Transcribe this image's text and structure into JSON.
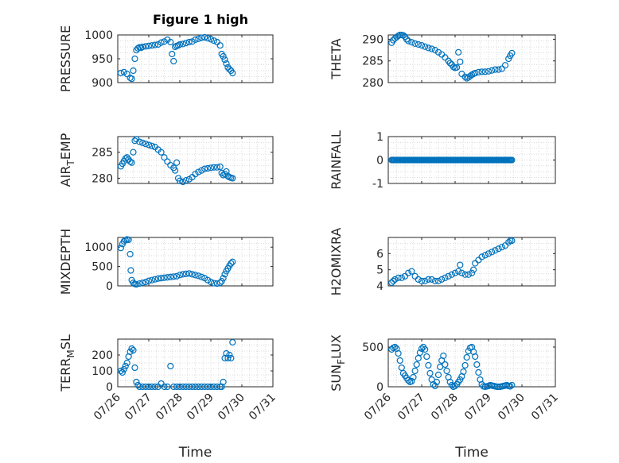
{
  "figure": {
    "title": "Figure 1 high"
  },
  "chart_data": [
    {
      "id": "pressure",
      "type": "scatter",
      "ylabel": "PRESSURE",
      "xlabel": "",
      "title": "Figure 1 high",
      "xlim": [
        "07/26",
        "07/31"
      ],
      "ylim": [
        900,
        1000
      ],
      "yticks": [
        900,
        950,
        1000
      ],
      "grid": true,
      "marker": "open-circle",
      "color": "#0072BD",
      "x": [
        0.1,
        0.2,
        0.3,
        0.4,
        0.45,
        0.5,
        0.55,
        0.6,
        0.65,
        0.7,
        0.75,
        0.8,
        0.9,
        1.0,
        1.1,
        1.2,
        1.3,
        1.4,
        1.5,
        1.6,
        1.7,
        1.75,
        1.8,
        1.85,
        1.9,
        1.95,
        2.0,
        2.1,
        2.2,
        2.3,
        2.4,
        2.5,
        2.6,
        2.7,
        2.8,
        2.9,
        3.0,
        3.1,
        3.2,
        3.3,
        3.35,
        3.4,
        3.45,
        3.5,
        3.55,
        3.6,
        3.65,
        3.7
      ],
      "y": [
        920,
        922,
        918,
        910,
        908,
        925,
        950,
        968,
        972,
        974,
        973,
        975,
        976,
        977,
        978,
        979,
        980,
        984,
        986,
        990,
        985,
        960,
        945,
        975,
        977,
        978,
        980,
        981,
        983,
        985,
        986,
        990,
        992,
        994,
        995,
        993,
        991,
        988,
        985,
        978,
        960,
        955,
        948,
        940,
        932,
        928,
        925,
        920
      ]
    },
    {
      "id": "theta",
      "type": "scatter",
      "ylabel": "THETA",
      "xlabel": "",
      "xlim": [
        "07/26",
        "07/31"
      ],
      "ylim": [
        280,
        291
      ],
      "yticks": [
        280,
        285,
        290
      ],
      "grid": true,
      "marker": "open-circle",
      "color": "#0072BD",
      "x": [
        0.1,
        0.15,
        0.2,
        0.25,
        0.3,
        0.35,
        0.4,
        0.45,
        0.5,
        0.55,
        0.6,
        0.7,
        0.8,
        0.9,
        1.0,
        1.1,
        1.2,
        1.3,
        1.4,
        1.5,
        1.6,
        1.7,
        1.8,
        1.85,
        1.9,
        1.95,
        2.0,
        2.05,
        2.1,
        2.15,
        2.2,
        2.3,
        2.35,
        2.4,
        2.45,
        2.5,
        2.55,
        2.6,
        2.7,
        2.8,
        2.9,
        3.0,
        3.1,
        3.2,
        3.3,
        3.4,
        3.5,
        3.6,
        3.65,
        3.7
      ],
      "y": [
        289.2,
        289.8,
        290.2,
        290.5,
        290.8,
        291.0,
        291.0,
        290.9,
        290.6,
        290.0,
        289.6,
        289.3,
        289.0,
        288.8,
        288.6,
        288.3,
        288.0,
        287.8,
        287.5,
        287.0,
        286.5,
        285.8,
        285.0,
        284.5,
        284.2,
        283.6,
        283.4,
        283.5,
        287.0,
        284.8,
        282.0,
        281.3,
        281.0,
        281.2,
        281.5,
        281.8,
        282.0,
        282.2,
        282.4,
        282.5,
        282.5,
        282.6,
        282.8,
        283.0,
        283.0,
        283.2,
        284.0,
        285.5,
        286.2,
        286.8
      ]
    },
    {
      "id": "air_temp",
      "type": "scatter",
      "ylabel": "AIR_TEMP",
      "xlabel": "",
      "xlim": [
        "07/26",
        "07/31"
      ],
      "ylim": [
        279,
        288
      ],
      "yticks": [
        280,
        285
      ],
      "grid": true,
      "marker": "open-circle",
      "color": "#0072BD",
      "x": [
        0.1,
        0.15,
        0.2,
        0.25,
        0.3,
        0.35,
        0.4,
        0.45,
        0.5,
        0.55,
        0.6,
        0.7,
        0.8,
        0.9,
        1.0,
        1.1,
        1.2,
        1.3,
        1.4,
        1.5,
        1.6,
        1.7,
        1.8,
        1.85,
        1.9,
        1.95,
        2.0,
        2.1,
        2.2,
        2.3,
        2.4,
        2.5,
        2.6,
        2.7,
        2.8,
        2.9,
        3.0,
        3.1,
        3.2,
        3.3,
        3.35,
        3.4,
        3.45,
        3.5,
        3.55,
        3.6,
        3.65,
        3.7
      ],
      "y": [
        282.3,
        282.8,
        283.3,
        283.8,
        284.0,
        283.6,
        283.2,
        283.0,
        285.0,
        287.2,
        287.5,
        287.0,
        286.8,
        286.6,
        286.4,
        286.2,
        286.0,
        285.5,
        285.0,
        284.0,
        283.2,
        282.5,
        282.0,
        281.5,
        283.0,
        280.0,
        279.5,
        279.3,
        279.6,
        279.8,
        280.2,
        280.8,
        281.2,
        281.5,
        281.8,
        281.9,
        282.0,
        282.1,
        282.1,
        282.2,
        281.0,
        280.6,
        280.8,
        281.3,
        280.4,
        280.2,
        280.1,
        280.0
      ]
    },
    {
      "id": "rainfall",
      "type": "scatter",
      "ylabel": "RAINFALL",
      "xlabel": "",
      "xlim": [
        "07/26",
        "07/31"
      ],
      "ylim": [
        -1,
        1
      ],
      "yticks": [
        -1,
        0,
        1
      ],
      "grid": true,
      "marker": "open-circle",
      "color": "#0072BD",
      "x_range": [
        0.1,
        3.7
      ],
      "y_constant": 0
    },
    {
      "id": "mixdepth",
      "type": "scatter",
      "ylabel": "MIXDEPTH",
      "xlabel": "",
      "xlim": [
        "07/26",
        "07/31"
      ],
      "ylim": [
        0,
        1250
      ],
      "yticks": [
        0,
        500,
        1000
      ],
      "grid": true,
      "marker": "open-circle",
      "color": "#0072BD",
      "x": [
        0.1,
        0.15,
        0.2,
        0.25,
        0.3,
        0.35,
        0.4,
        0.42,
        0.45,
        0.5,
        0.55,
        0.6,
        0.7,
        0.8,
        0.9,
        1.0,
        1.1,
        1.2,
        1.3,
        1.4,
        1.5,
        1.6,
        1.7,
        1.8,
        1.9,
        2.0,
        2.1,
        2.2,
        2.3,
        2.4,
        2.5,
        2.6,
        2.7,
        2.8,
        2.9,
        3.0,
        3.1,
        3.2,
        3.3,
        3.35,
        3.4,
        3.45,
        3.5,
        3.55,
        3.6,
        3.65,
        3.7
      ],
      "y": [
        980,
        1080,
        1150,
        1180,
        1200,
        1190,
        820,
        400,
        150,
        80,
        50,
        40,
        60,
        80,
        100,
        130,
        150,
        170,
        190,
        200,
        210,
        220,
        230,
        240,
        250,
        280,
        300,
        310,
        320,
        300,
        280,
        260,
        230,
        200,
        150,
        100,
        70,
        60,
        80,
        120,
        200,
        300,
        380,
        450,
        520,
        580,
        620
      ]
    },
    {
      "id": "h2omixra",
      "type": "scatter",
      "ylabel": "H2OMIXRA",
      "xlabel": "",
      "xlim": [
        "07/26",
        "07/31"
      ],
      "ylim": [
        4,
        7
      ],
      "yticks": [
        4,
        5,
        6
      ],
      "grid": true,
      "marker": "open-circle",
      "color": "#0072BD",
      "x": [
        0.1,
        0.15,
        0.2,
        0.3,
        0.4,
        0.5,
        0.6,
        0.7,
        0.8,
        0.9,
        1.0,
        1.1,
        1.2,
        1.3,
        1.4,
        1.5,
        1.6,
        1.7,
        1.8,
        1.9,
        2.0,
        2.1,
        2.15,
        2.2,
        2.3,
        2.4,
        2.5,
        2.55,
        2.6,
        2.7,
        2.8,
        2.9,
        3.0,
        3.1,
        3.2,
        3.3,
        3.4,
        3.5,
        3.6,
        3.65,
        3.7
      ],
      "y": [
        4.2,
        4.3,
        4.4,
        4.5,
        4.5,
        4.6,
        4.8,
        4.9,
        4.6,
        4.4,
        4.3,
        4.3,
        4.4,
        4.4,
        4.3,
        4.3,
        4.4,
        4.5,
        4.6,
        4.7,
        4.8,
        4.9,
        5.3,
        4.8,
        4.7,
        4.7,
        4.8,
        5.0,
        5.4,
        5.6,
        5.8,
        5.9,
        6.0,
        6.1,
        6.2,
        6.3,
        6.4,
        6.5,
        6.7,
        6.8,
        6.8
      ]
    },
    {
      "id": "terr_msl",
      "type": "scatter",
      "ylabel": "TERR_MSL",
      "xlabel": "Time",
      "xlim": [
        "07/26",
        "07/31"
      ],
      "ylim": [
        0,
        300
      ],
      "yticks": [
        0,
        100,
        200
      ],
      "grid": true,
      "xticks": [
        "07/26",
        "07/27",
        "07/28",
        "07/29",
        "07/30",
        "07/31"
      ],
      "marker": "open-circle",
      "color": "#0072BD",
      "x": [
        0.1,
        0.15,
        0.2,
        0.25,
        0.3,
        0.35,
        0.4,
        0.45,
        0.5,
        0.55,
        0.6,
        0.65,
        0.7,
        0.8,
        0.9,
        1.0,
        1.1,
        1.2,
        1.3,
        1.4,
        1.5,
        1.6,
        1.7,
        1.8,
        1.9,
        2.0,
        2.1,
        2.2,
        2.3,
        2.4,
        2.5,
        2.6,
        2.7,
        2.8,
        2.9,
        3.0,
        3.1,
        3.2,
        3.3,
        3.35,
        3.4,
        3.45,
        3.5,
        3.55,
        3.6,
        3.65,
        3.7
      ],
      "y": [
        100,
        90,
        110,
        130,
        150,
        190,
        220,
        240,
        230,
        120,
        30,
        10,
        0,
        0,
        0,
        0,
        0,
        0,
        0,
        20,
        0,
        0,
        130,
        0,
        0,
        0,
        0,
        0,
        0,
        0,
        0,
        0,
        0,
        0,
        0,
        0,
        0,
        0,
        0,
        0,
        30,
        180,
        210,
        180,
        200,
        180,
        280
      ]
    },
    {
      "id": "sun_flux",
      "type": "scatter",
      "ylabel": "SUN_FLUX",
      "xlabel": "Time",
      "xlim": [
        "07/26",
        "07/31"
      ],
      "ylim": [
        0,
        600
      ],
      "yticks": [
        0,
        500
      ],
      "grid": true,
      "xticks": [
        "07/26",
        "07/27",
        "07/28",
        "07/29",
        "07/30",
        "07/31"
      ],
      "marker": "open-circle",
      "color": "#0072BD",
      "x": [
        0.1,
        0.15,
        0.2,
        0.25,
        0.3,
        0.35,
        0.4,
        0.45,
        0.5,
        0.55,
        0.6,
        0.65,
        0.7,
        0.75,
        0.8,
        0.85,
        0.9,
        0.95,
        1.0,
        1.05,
        1.1,
        1.15,
        1.2,
        1.25,
        1.3,
        1.35,
        1.4,
        1.45,
        1.5,
        1.55,
        1.6,
        1.65,
        1.7,
        1.75,
        1.8,
        1.85,
        1.9,
        1.95,
        2.0,
        2.05,
        2.1,
        2.15,
        2.2,
        2.25,
        2.3,
        2.35,
        2.4,
        2.45,
        2.5,
        2.55,
        2.6,
        2.65,
        2.7,
        2.75,
        2.8,
        2.85,
        2.9,
        2.95,
        3.0,
        3.05,
        3.1,
        3.15,
        3.2,
        3.25,
        3.3,
        3.35,
        3.4,
        3.45,
        3.5,
        3.55,
        3.6,
        3.65,
        3.7
      ],
      "y": [
        470,
        490,
        500,
        480,
        420,
        330,
        240,
        170,
        140,
        110,
        80,
        60,
        70,
        120,
        200,
        280,
        360,
        430,
        480,
        500,
        470,
        380,
        270,
        170,
        90,
        30,
        10,
        60,
        150,
        250,
        330,
        390,
        280,
        200,
        120,
        60,
        20,
        0,
        10,
        30,
        60,
        90,
        130,
        190,
        270,
        370,
        450,
        490,
        500,
        440,
        380,
        280,
        180,
        90,
        30,
        5,
        0,
        5,
        10,
        20,
        15,
        10,
        5,
        0,
        0,
        0,
        5,
        10,
        15,
        20,
        10,
        5,
        20
      ]
    }
  ]
}
